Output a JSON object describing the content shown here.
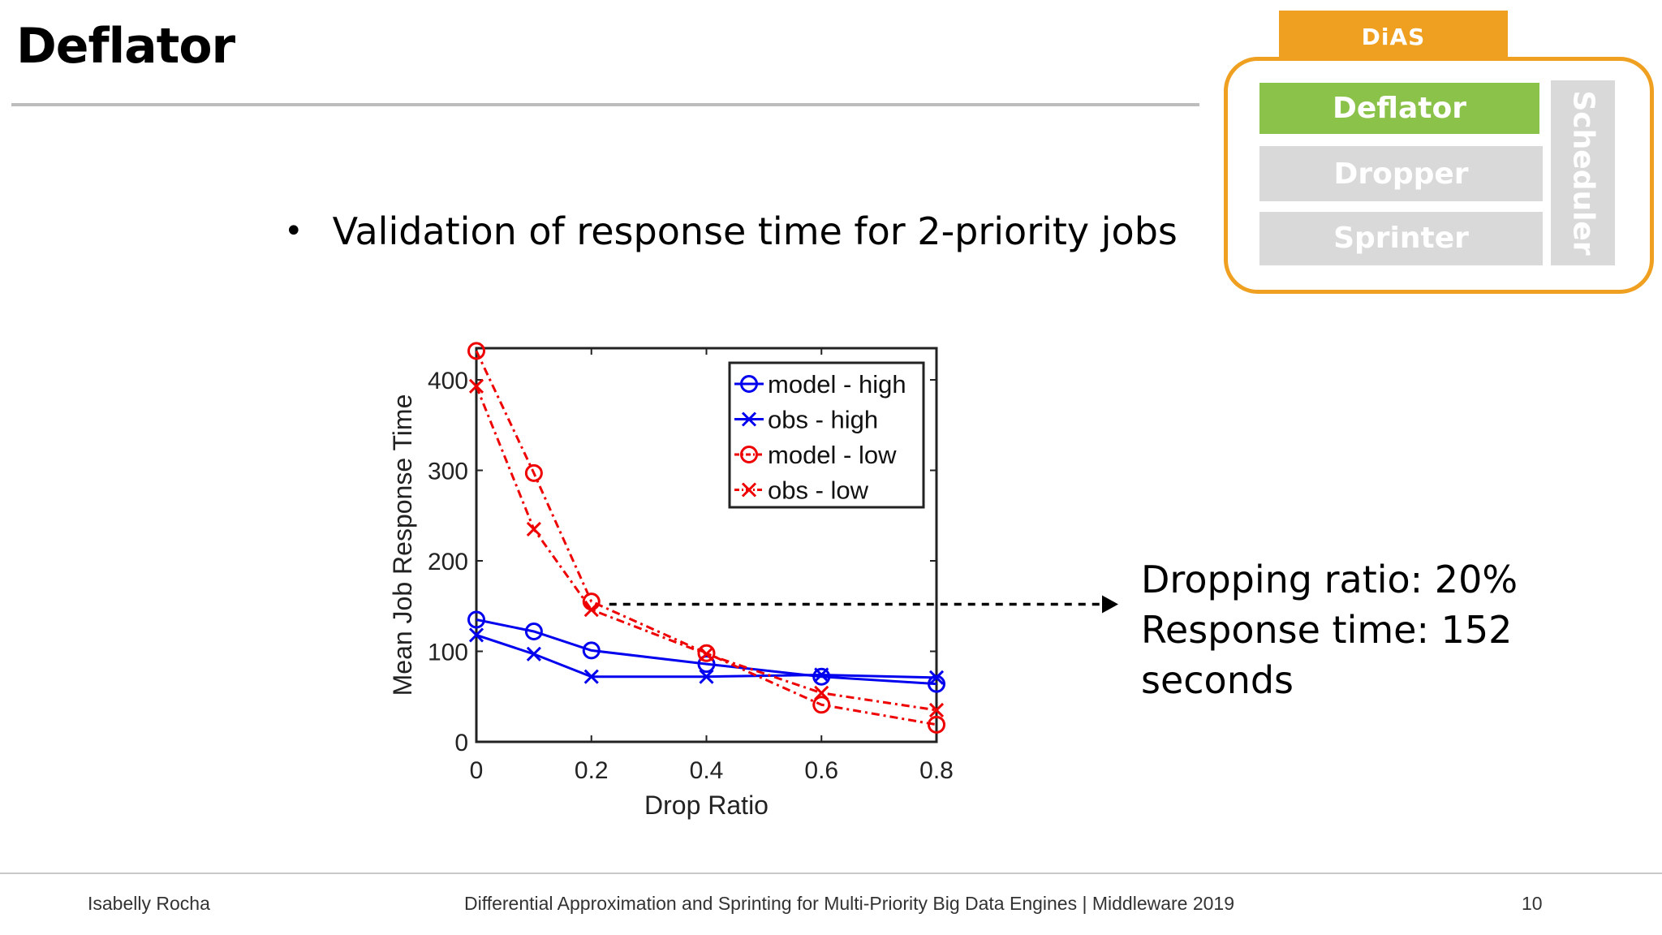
{
  "slide": {
    "title": "Deflator",
    "bullet": "Validation of response time for 2-priority jobs",
    "annotation": [
      "Dropping ratio: 20%",
      "Response time: 152 seconds"
    ]
  },
  "dias": {
    "tab": "DiAS",
    "blocks": [
      "Deflator",
      "Dropper",
      "Sprinter"
    ],
    "side": "Scheduler",
    "colors": {
      "frame": "#f0a020",
      "active": "#8bc34a",
      "inactive": "#d9d9d9"
    }
  },
  "footer": {
    "author": "Isabelly Rocha",
    "center": "Differential Approximation and Sprinting for Multi-Priority Big Data Engines | Middleware 2019",
    "page": "10"
  },
  "chart_data": {
    "type": "line",
    "xlabel": "Drop Ratio",
    "ylabel": "Mean Job Response Time",
    "xlim": [
      0,
      0.8
    ],
    "ylim": [
      0,
      435
    ],
    "xticks": [
      "0",
      "0.2",
      "0.4",
      "0.6",
      "0.8"
    ],
    "yticks": [
      "0",
      "100",
      "200",
      "300",
      "400"
    ],
    "legend_position": "top-right",
    "grid": false,
    "series": [
      {
        "name": "model - high",
        "color": "#0000ee",
        "marker": "circle",
        "dash": "solid",
        "x": [
          0,
          0.1,
          0.2,
          0.4,
          0.6,
          0.8
        ],
        "y": [
          135,
          122,
          101,
          86,
          72,
          64
        ]
      },
      {
        "name": "obs - high",
        "color": "#0000ee",
        "marker": "x",
        "dash": "solid",
        "x": [
          0,
          0.1,
          0.2,
          0.4,
          0.6,
          0.8
        ],
        "y": [
          118,
          97,
          72,
          72,
          74,
          71
        ]
      },
      {
        "name": "model - low",
        "color": "#ee0000",
        "marker": "circle",
        "dash": "dashdot",
        "x": [
          0,
          0.1,
          0.2,
          0.4,
          0.6,
          0.8
        ],
        "y": [
          432,
          297,
          155,
          98,
          41,
          19
        ]
      },
      {
        "name": "obs - low",
        "color": "#ee0000",
        "marker": "x",
        "dash": "dashdot",
        "x": [
          0,
          0.1,
          0.2,
          0.4,
          0.6,
          0.8
        ],
        "y": [
          393,
          235,
          146,
          97,
          54,
          35
        ]
      }
    ],
    "callout": {
      "x": 0.2,
      "y": 152
    }
  }
}
